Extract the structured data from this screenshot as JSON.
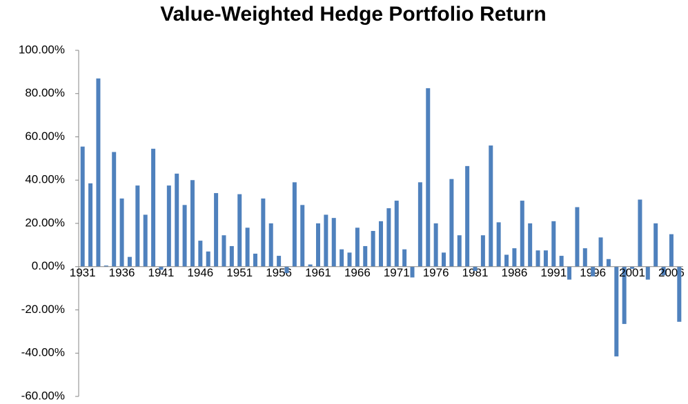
{
  "chart_data": {
    "type": "bar",
    "title": "Value-Weighted Hedge Portfolio Return",
    "categories": [
      "1931",
      null,
      null,
      null,
      null,
      "1936",
      null,
      null,
      null,
      null,
      "1941",
      null,
      null,
      null,
      null,
      "1946",
      null,
      null,
      null,
      null,
      "1951",
      null,
      null,
      null,
      null,
      "1956",
      null,
      null,
      null,
      null,
      "1961",
      null,
      null,
      null,
      null,
      "1966",
      null,
      null,
      null,
      null,
      "1971",
      null,
      null,
      null,
      null,
      "1976",
      null,
      null,
      null,
      null,
      "1981",
      null,
      null,
      null,
      null,
      "1986",
      null,
      null,
      null,
      null,
      "1991",
      null,
      null,
      null,
      null,
      "1996",
      null,
      null,
      null,
      null,
      "2001",
      null,
      null,
      null,
      null,
      "2006",
      null
    ],
    "values": [
      55.5,
      38.5,
      87,
      0.5,
      53,
      31.5,
      4.5,
      37.5,
      24,
      54.5,
      -1.5,
      37.5,
      43,
      28.5,
      40,
      12,
      7,
      34,
      14.5,
      9.5,
      33.5,
      18,
      6,
      31.5,
      20,
      5,
      -3,
      39,
      28.5,
      1,
      20,
      24,
      22.5,
      8,
      6.5,
      18,
      9.5,
      16.5,
      21,
      27,
      30.5,
      8,
      -5,
      39,
      82.5,
      20,
      6.5,
      40.5,
      14.5,
      46.5,
      -2,
      14.5,
      56,
      20.5,
      5.5,
      8.5,
      30.5,
      20,
      7.5,
      7.5,
      21,
      5,
      -6,
      27.5,
      8.5,
      -4.5,
      13.5,
      3.5,
      -41.5,
      -26.5,
      -1,
      31,
      -6,
      20,
      -4,
      15,
      -25.5
    ],
    "color": "#4f81bd",
    "ylim": [
      -60,
      100
    ],
    "yticks": [
      {
        "value": -60,
        "label": "-60.00%"
      },
      {
        "value": -40,
        "label": "-40.00%"
      },
      {
        "value": -20,
        "label": "-20.00%"
      },
      {
        "value": 0,
        "label": "0.00%"
      },
      {
        "value": 20,
        "label": "20.00%"
      },
      {
        "value": 40,
        "label": "40.00%"
      },
      {
        "value": 60,
        "label": "60.00%"
      },
      {
        "value": 80,
        "label": "80.00%"
      },
      {
        "value": 100,
        "label": "100.00%"
      }
    ],
    "grid": false
  }
}
